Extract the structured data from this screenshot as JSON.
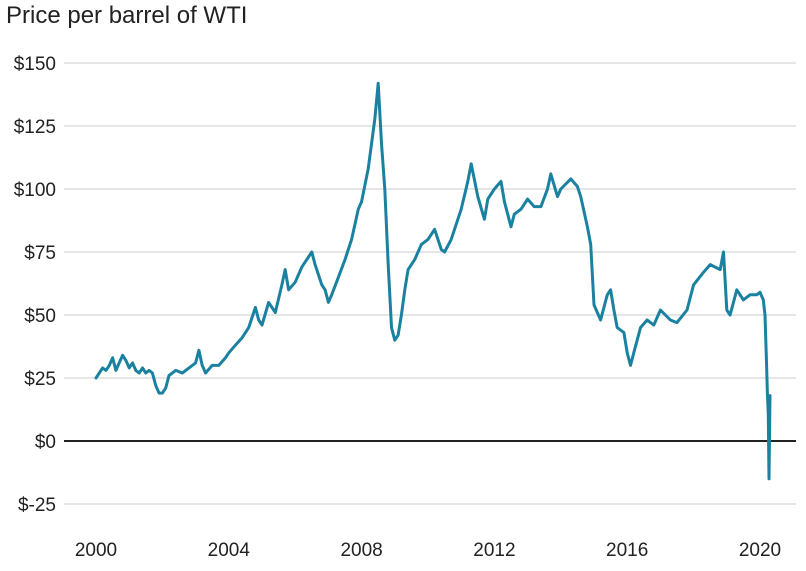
{
  "chart_data": {
    "type": "line",
    "title": "Price per barrel of WTI",
    "xlabel": "",
    "ylabel": "",
    "xlim": [
      2000,
      2020.6
    ],
    "ylim": [
      -25,
      150
    ],
    "grid": true,
    "legend": "none",
    "colors": {
      "line": "#1b81a0",
      "grid": "#cccccc",
      "zero_line": "#222222",
      "text": "#222222"
    },
    "x_ticks": [
      {
        "value": 2000,
        "label": "2000"
      },
      {
        "value": 2004,
        "label": "2004"
      },
      {
        "value": 2008,
        "label": "2008"
      },
      {
        "value": 2012,
        "label": "2012"
      },
      {
        "value": 2016,
        "label": "2016"
      },
      {
        "value": 2020,
        "label": "2020"
      }
    ],
    "y_ticks": [
      {
        "value": 150,
        "label": "$150"
      },
      {
        "value": 125,
        "label": "$125"
      },
      {
        "value": 100,
        "label": "$100"
      },
      {
        "value": 75,
        "label": "$75"
      },
      {
        "value": 50,
        "label": "$50"
      },
      {
        "value": 25,
        "label": "$25"
      },
      {
        "value": 0,
        "label": "$0"
      },
      {
        "value": -25,
        "label": "$-25"
      }
    ],
    "series": [
      {
        "x": [
          2000.0,
          2000.1,
          2000.2,
          2000.3,
          2000.4,
          2000.5,
          2000.6,
          2000.7,
          2000.8,
          2000.9,
          2001.0,
          2001.1,
          2001.2,
          2001.3,
          2001.4,
          2001.5,
          2001.6,
          2001.7,
          2001.8,
          2001.9,
          2002.0,
          2002.1,
          2002.2,
          2002.4,
          2002.6,
          2002.8,
          2003.0,
          2003.1,
          2003.2,
          2003.3,
          2003.5,
          2003.7,
          2003.9,
          2004.0,
          2004.2,
          2004.4,
          2004.6,
          2004.8,
          2004.9,
          2005.0,
          2005.2,
          2005.4,
          2005.6,
          2005.7,
          2005.8,
          2006.0,
          2006.2,
          2006.4,
          2006.5,
          2006.6,
          2006.8,
          2006.9,
          2007.0,
          2007.1,
          2007.3,
          2007.5,
          2007.7,
          2007.9,
          2008.0,
          2008.2,
          2008.4,
          2008.5,
          2008.6,
          2008.7,
          2008.8,
          2008.9,
          2009.0,
          2009.1,
          2009.2,
          2009.3,
          2009.4,
          2009.5,
          2009.6,
          2009.8,
          2010.0,
          2010.2,
          2010.4,
          2010.5,
          2010.7,
          2010.9,
          2011.0,
          2011.2,
          2011.3,
          2011.5,
          2011.7,
          2011.8,
          2012.0,
          2012.2,
          2012.3,
          2012.5,
          2012.6,
          2012.8,
          2013.0,
          2013.2,
          2013.4,
          2013.6,
          2013.7,
          2013.9,
          2014.0,
          2014.3,
          2014.5,
          2014.6,
          2014.8,
          2014.9,
          2015.0,
          2015.2,
          2015.4,
          2015.5,
          2015.6,
          2015.7,
          2015.9,
          2016.0,
          2016.1,
          2016.2,
          2016.4,
          2016.6,
          2016.8,
          2017.0,
          2017.3,
          2017.5,
          2017.8,
          2018.0,
          2018.3,
          2018.5,
          2018.8,
          2018.9,
          2019.0,
          2019.1,
          2019.3,
          2019.5,
          2019.7,
          2019.9,
          2020.0,
          2020.1,
          2020.15,
          2020.2,
          2020.22,
          2020.25,
          2020.27,
          2020.3
        ],
        "values": [
          25,
          27,
          29,
          28,
          30,
          33,
          28,
          31,
          34,
          32,
          29,
          31,
          28,
          27,
          29,
          27,
          28,
          27,
          22,
          19,
          19,
          21,
          26,
          28,
          27,
          29,
          31,
          36,
          30,
          27,
          30,
          30,
          33,
          35,
          38,
          41,
          45,
          53,
          48,
          46,
          55,
          51,
          62,
          68,
          60,
          63,
          69,
          73,
          75,
          70,
          62,
          60,
          55,
          58,
          65,
          72,
          80,
          92,
          95,
          108,
          128,
          142,
          118,
          100,
          70,
          45,
          40,
          42,
          50,
          60,
          68,
          70,
          72,
          78,
          80,
          84,
          76,
          75,
          80,
          88,
          92,
          103,
          110,
          97,
          88,
          96,
          100,
          103,
          95,
          85,
          90,
          92,
          96,
          93,
          93,
          100,
          106,
          97,
          100,
          104,
          101,
          97,
          85,
          78,
          54,
          48,
          58,
          60,
          52,
          45,
          43,
          35,
          30,
          35,
          45,
          48,
          46,
          52,
          48,
          47,
          52,
          62,
          67,
          70,
          68,
          75,
          52,
          50,
          60,
          56,
          58,
          58,
          59,
          56,
          50,
          30,
          20,
          10,
          -15,
          18
        ]
      }
    ]
  }
}
